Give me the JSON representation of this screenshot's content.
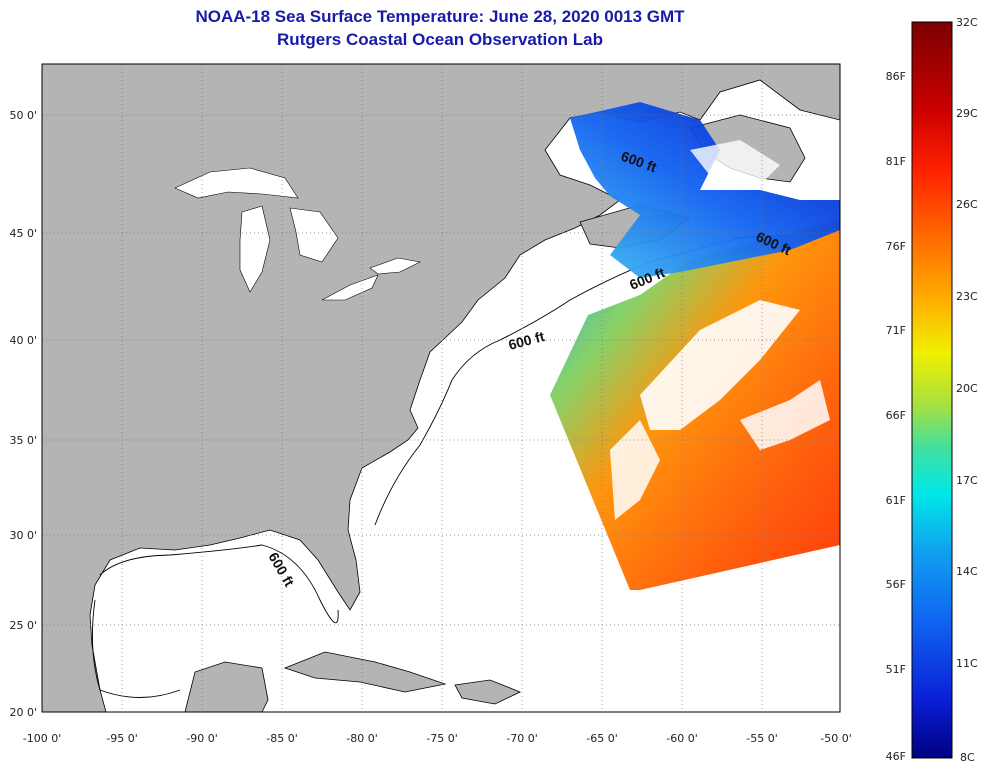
{
  "title": "NOAA-18 Sea Surface Temperature:  June 28, 2020 0013 GMT",
  "subtitle": "Rutgers Coastal Ocean Observation Lab",
  "map": {
    "lon_range": [
      -100,
      -50
    ],
    "lat_range": [
      20,
      52
    ],
    "lon_ticks": [
      "-100 0'",
      "-95 0'",
      "-90 0'",
      "-85 0'",
      "-80 0'",
      "-75 0'",
      "-70 0'",
      "-65 0'",
      "-60 0'",
      "-55 0'",
      "-50 0'"
    ],
    "lat_ticks": [
      "20 0'",
      "25 0'",
      "30 0'",
      "35 0'",
      "40 0'",
      "45 0'",
      "50 0'"
    ],
    "contour_labels": [
      "600 ft",
      "600 ft",
      "600 ft",
      "600 ft",
      "600 ft"
    ],
    "colors": {
      "land": "#b4b4b4",
      "ocean": "#ffffff",
      "graticule": "#777777"
    }
  },
  "colorbar": {
    "fahrenheit_labels": [
      "86F",
      "81F",
      "76F",
      "71F",
      "66F",
      "61F",
      "56F",
      "51F",
      "46F"
    ],
    "celsius_labels": [
      "32C",
      "29C",
      "26C",
      "23C",
      "20C",
      "17C",
      "14C",
      "11C",
      "8C"
    ],
    "range_c": [
      8,
      32
    ],
    "colors": [
      "#7a0000",
      "#c80000",
      "#ff2000",
      "#ff7000",
      "#ffb000",
      "#f0f000",
      "#a8e040",
      "#40e0a0",
      "#00e8e8",
      "#10a0f0",
      "#1060f0",
      "#0a20d8",
      "#000080"
    ]
  }
}
